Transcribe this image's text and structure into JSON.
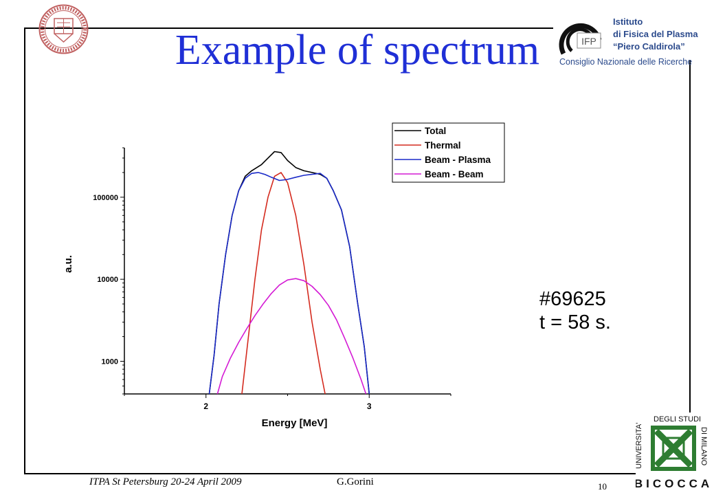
{
  "slide": {
    "title": "Example of spectrum",
    "shot_number": "#69625",
    "shot_time": "t = 58 s.",
    "footer_left": "ITPA St Petersburg 20-24 April 2009",
    "footer_center": "G.Gorini",
    "page_number": "10"
  },
  "logos": {
    "ifp_abbrev": "IFP",
    "ifp_line1": "Istituto",
    "ifp_line2": "di Fisica del Plasma",
    "ifp_line3": "“Piero Caldirola”",
    "ifp_line4": "Consiglio Nazionale delle Ricerche",
    "bicocca_arc1": "UNIVERSITA'",
    "bicocca_arc2": "DEGLI STUDI",
    "bicocca_arc3": "DI MILANO",
    "bicocca_name": "BICOCCA",
    "seal_text": "UNIVERSITAS"
  },
  "colors": {
    "title": "#1f2fd6",
    "total": "#000000",
    "thermal": "#d42a1e",
    "beam_plasma": "#1a2ac8",
    "beam_beam": "#d41ad4",
    "bicocca_green": "#2e7d32"
  },
  "chart_data": {
    "type": "line",
    "xlabel": "Energy [MeV]",
    "ylabel": "a.u.",
    "yscale": "log",
    "xlim": [
      1.5,
      3.5
    ],
    "ylim": [
      400,
      400000
    ],
    "xticks": [
      2,
      3
    ],
    "xtick_labels": [
      "2",
      "3"
    ],
    "yticks": [
      1000,
      10000,
      100000
    ],
    "ytick_labels": [
      "1000",
      "10000",
      "100000"
    ],
    "legend_position": "top-right",
    "series": [
      {
        "name": "Total",
        "color": "#000000",
        "x": [
          2.02,
          2.05,
          2.08,
          2.12,
          2.16,
          2.2,
          2.24,
          2.28,
          2.34,
          2.38,
          2.42,
          2.46,
          2.5,
          2.55,
          2.6,
          2.65,
          2.7,
          2.74,
          2.78,
          2.83,
          2.88,
          2.93,
          2.97,
          3.0
        ],
        "y": [
          400,
          1200,
          5000,
          20000,
          60000,
          120000,
          180000,
          210000,
          250000,
          300000,
          360000,
          350000,
          280000,
          230000,
          210000,
          200000,
          190000,
          170000,
          120000,
          70000,
          25000,
          5000,
          1500,
          400
        ]
      },
      {
        "name": "Thermal",
        "color": "#d42a1e",
        "x": [
          2.22,
          2.26,
          2.3,
          2.34,
          2.38,
          2.42,
          2.46,
          2.5,
          2.55,
          2.6,
          2.65,
          2.7,
          2.73
        ],
        "y": [
          400,
          2000,
          10000,
          40000,
          100000,
          180000,
          200000,
          150000,
          60000,
          15000,
          3000,
          800,
          400
        ]
      },
      {
        "name": "Beam - Plasma",
        "color": "#1a2ac8",
        "x": [
          2.02,
          2.05,
          2.08,
          2.12,
          2.16,
          2.2,
          2.24,
          2.28,
          2.32,
          2.36,
          2.4,
          2.45,
          2.5,
          2.55,
          2.6,
          2.65,
          2.7,
          2.74,
          2.78,
          2.83,
          2.88,
          2.93,
          2.97,
          3.0
        ],
        "y": [
          400,
          1200,
          5000,
          20000,
          60000,
          120000,
          170000,
          195000,
          200000,
          190000,
          175000,
          160000,
          165000,
          175000,
          185000,
          190000,
          195000,
          170000,
          120000,
          70000,
          25000,
          5000,
          1500,
          400
        ]
      },
      {
        "name": "Beam - Beam",
        "color": "#d41ad4",
        "x": [
          2.07,
          2.1,
          2.15,
          2.2,
          2.25,
          2.3,
          2.35,
          2.4,
          2.45,
          2.5,
          2.55,
          2.6,
          2.65,
          2.7,
          2.75,
          2.8,
          2.85,
          2.9,
          2.95,
          2.98
        ],
        "y": [
          400,
          650,
          1100,
          1700,
          2500,
          3600,
          5000,
          6700,
          8500,
          9800,
          10200,
          9600,
          8200,
          6500,
          4800,
          3200,
          1900,
          1100,
          600,
          400
        ]
      }
    ]
  }
}
